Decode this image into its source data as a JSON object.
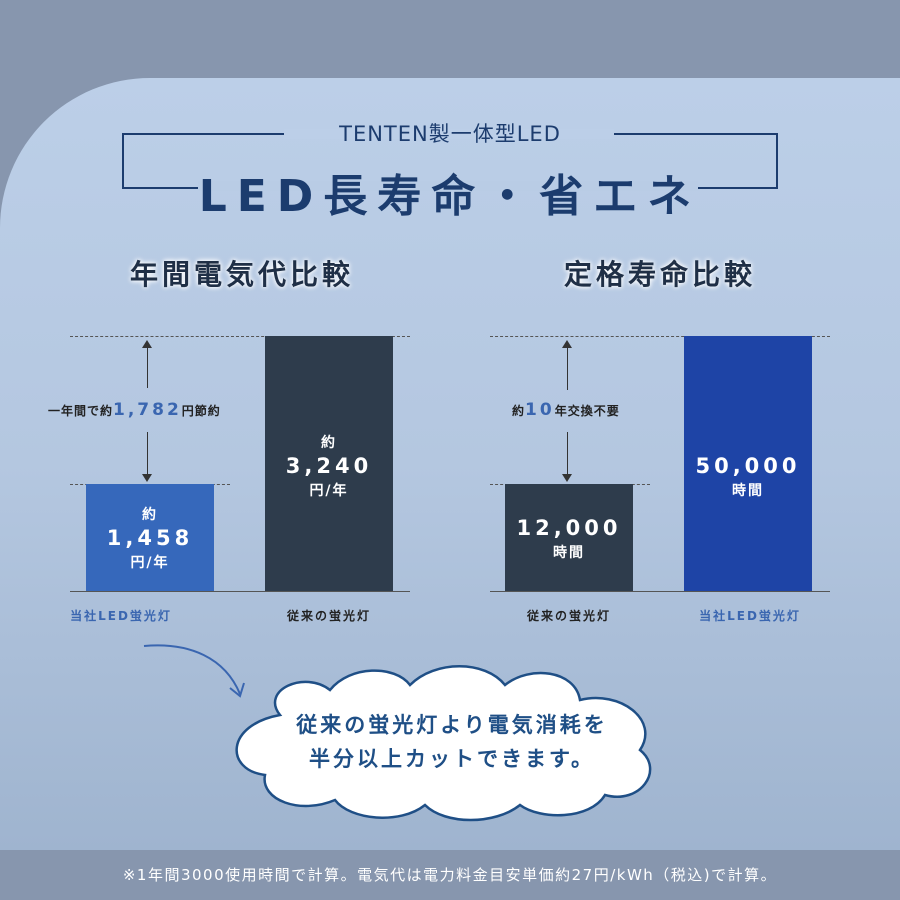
{
  "header": {
    "subtitle": "TENTEN製一体型LED",
    "title": "LED長寿命・省エネ"
  },
  "left_chart": {
    "heading": "年間電気代比較",
    "note_prefix": "一年間で約",
    "note_value": "1,782",
    "note_suffix": "円節約",
    "bar_led": {
      "pre": "約",
      "value": "1,458",
      "unit": "円/年",
      "label": "当社LED蛍光灯",
      "color": "#3668bb"
    },
    "bar_old": {
      "pre": "約",
      "value": "3,240",
      "unit": "円/年",
      "label": "従来の蛍光灯",
      "color": "#2e3c4c"
    }
  },
  "right_chart": {
    "heading": "定格寿命比較",
    "note_prefix": "約",
    "note_value": "10",
    "note_suffix": "年交換不要",
    "bar_old": {
      "value": "12,000",
      "unit": "時間",
      "label": "従来の蛍光灯",
      "color": "#2e3c4c"
    },
    "bar_led": {
      "value": "50,000",
      "unit": "時間",
      "label": "当社LED蛍光灯",
      "color": "#1e44a6"
    }
  },
  "chart_data": [
    {
      "type": "bar",
      "title": "年間電気代比較",
      "categories": [
        "当社LED蛍光灯",
        "従来の蛍光灯"
      ],
      "values": [
        1458,
        3240
      ],
      "annotation": "一年間で約1,782円節約"
    },
    {
      "type": "bar",
      "title": "定格寿命比較",
      "categories": [
        "従来の蛍光灯",
        "当社LED蛍光灯"
      ],
      "values": [
        12000,
        50000
      ],
      "annotation": "約10年交換不要"
    }
  ],
  "bubble": {
    "line1": "従来の蛍光灯より電気消耗を",
    "line2": "半分以上カットできます。"
  },
  "footer": {
    "text": "※1年間3000使用時間で計算。電気代は電力料金目安単価約27円/kWh（税込)で計算。"
  },
  "colors": {
    "accent": "#3a66b0",
    "title_navy": "#1c3c6e",
    "bubble_text": "#1f4f86"
  }
}
